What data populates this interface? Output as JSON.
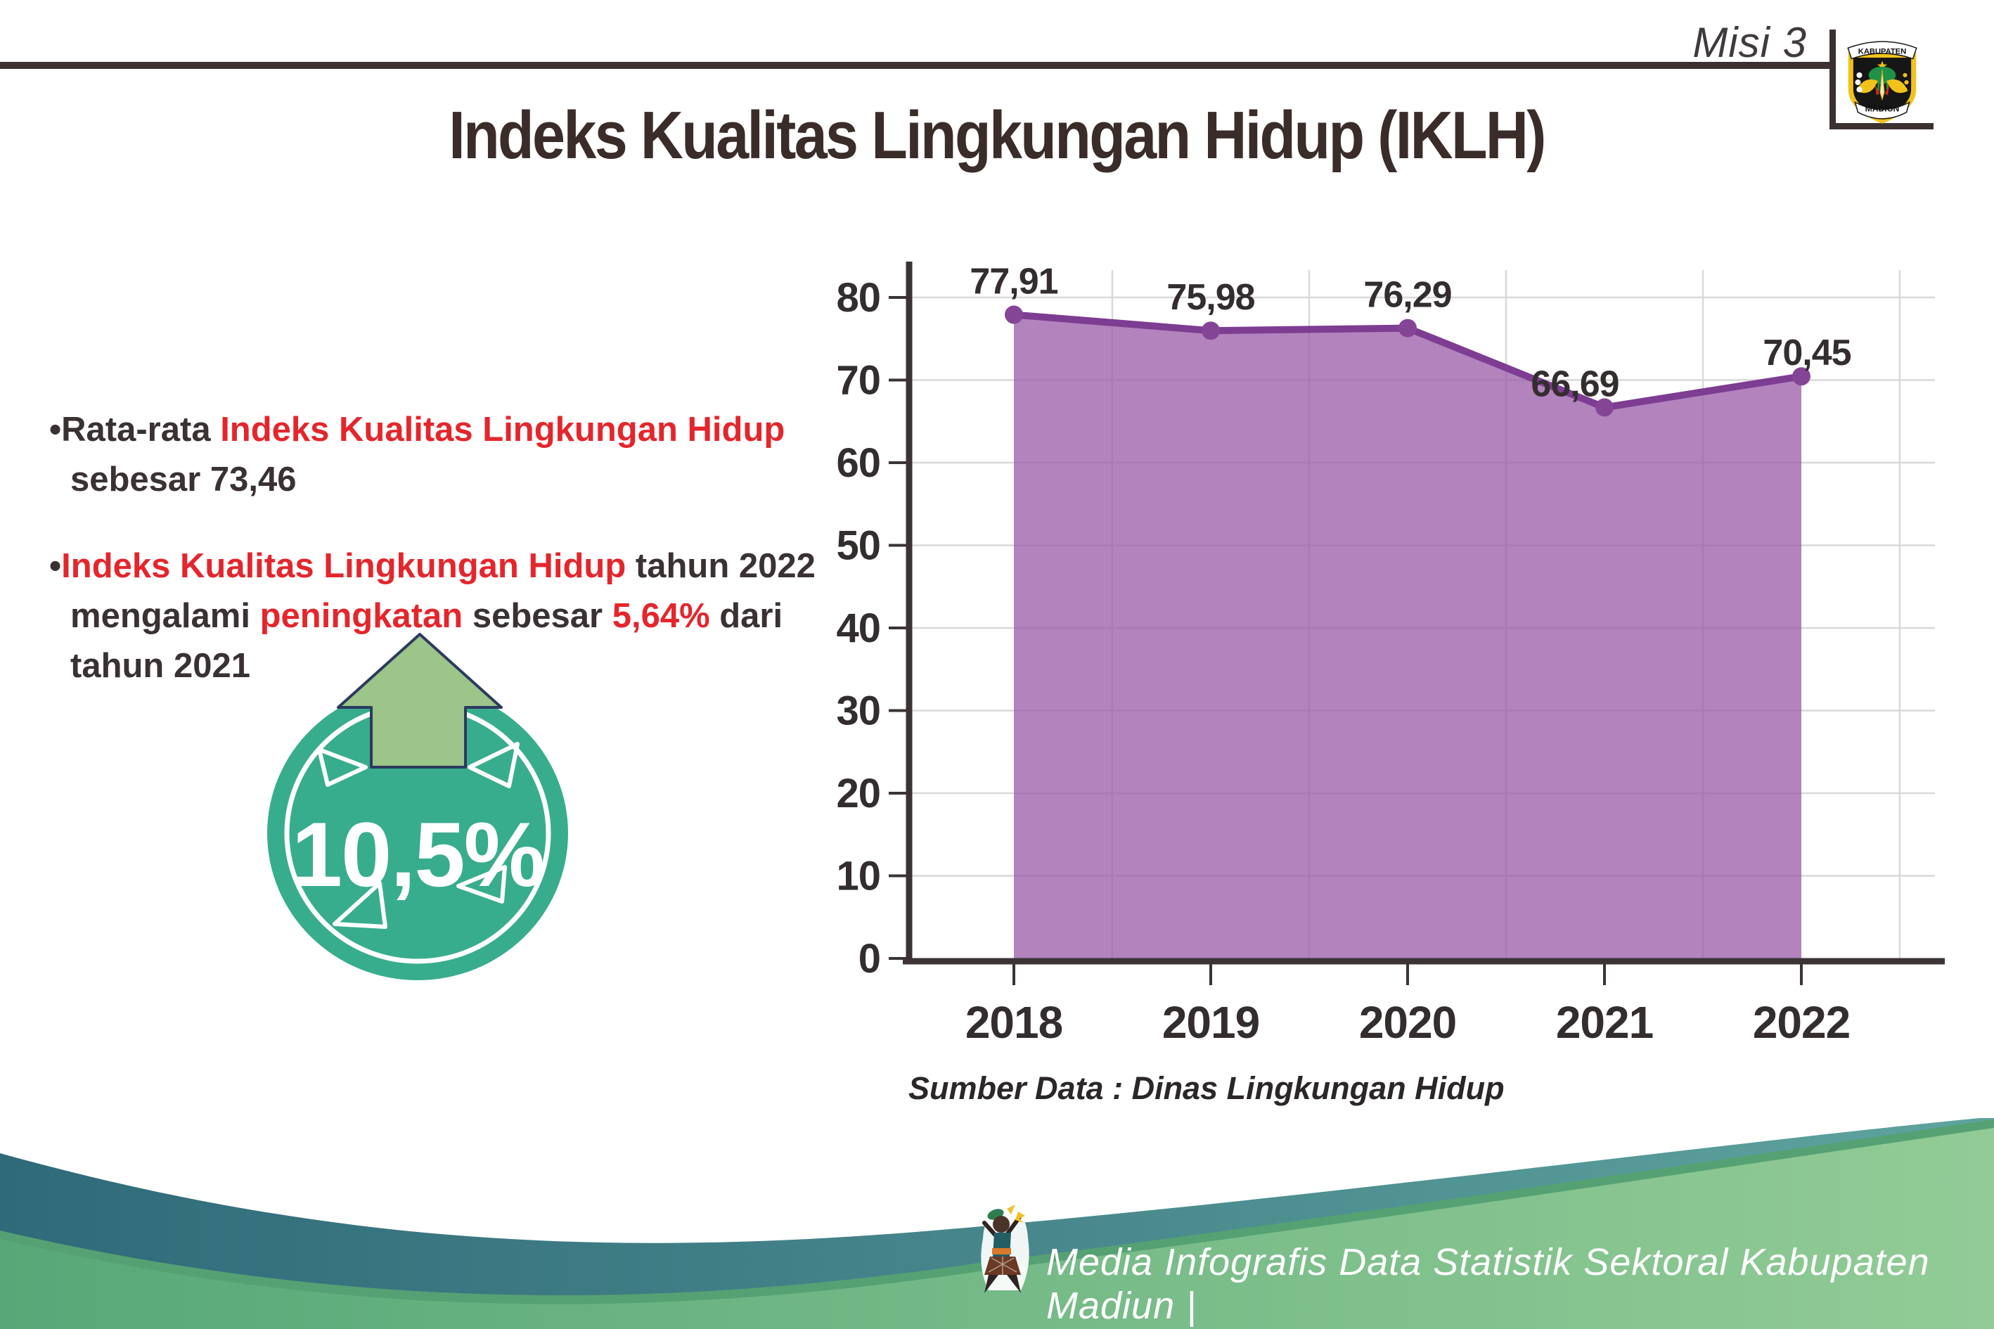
{
  "header": {
    "mission_label": "Misi 3",
    "logo": {
      "top_banner": "KABUPATEN",
      "bottom_banner": "MADIUN"
    }
  },
  "title": "Indeks Kualitas Lingkungan Hidup (IKLH)",
  "insights": {
    "bullet1": {
      "segments": [
        {
          "text": "•",
          "color": "dark"
        },
        {
          "text": "Rata-rata ",
          "color": "dark"
        },
        {
          "text": "Indeks Kualitas Lingkungan Hidup",
          "color": "red"
        },
        {
          "text": " sebesar 73,46",
          "color": "dark"
        }
      ]
    },
    "bullet2": {
      "segments": [
        {
          "text": "•",
          "color": "dark"
        },
        {
          "text": "Indeks Kualitas Lingkungan Hidup",
          "color": "red"
        },
        {
          "text": " tahun 2022 mengalami ",
          "color": "dark"
        },
        {
          "text": "peningkatan",
          "color": "red"
        },
        {
          "text": " sebesar ",
          "color": "dark"
        },
        {
          "text": "5,64%",
          "color": "red"
        },
        {
          "text": " dari tahun 2021",
          "color": "dark"
        }
      ]
    }
  },
  "badge": {
    "value_label": "10,5%",
    "direction": "up",
    "circle_color": "#38ad8e",
    "arrow_color": "#9dc489",
    "arrow_outline_color": "#2c3a5e"
  },
  "chart_data": {
    "type": "area",
    "title": "",
    "categories": [
      "2018",
      "2019",
      "2020",
      "2021",
      "2022"
    ],
    "values": [
      77.91,
      75.98,
      76.29,
      66.69,
      70.45
    ],
    "value_labels": [
      "77,91",
      "75,98",
      "76,29",
      "66,69",
      "70,45"
    ],
    "xlabel": "",
    "ylabel": "",
    "ylim": [
      0,
      80
    ],
    "y_tick_step": 10,
    "grid": true,
    "legend": false,
    "source_note": "Sumber Data : Dinas Lingkungan Hidup",
    "colors": {
      "area_fill": "#9959a7",
      "line": "#7d3d92",
      "marker": "#854597",
      "gridline": "#d9d9d9",
      "axis": "#3b3334",
      "label": "#332d2e"
    }
  },
  "footer": {
    "credit": "Media Infografis Data Statistik Sektoral Kabupaten Madiun |",
    "wave_teal_from": "#2f6a79",
    "wave_teal_to": "#5fa39e",
    "wave_green_from": "#57a878",
    "wave_green_to": "#92cb96"
  }
}
